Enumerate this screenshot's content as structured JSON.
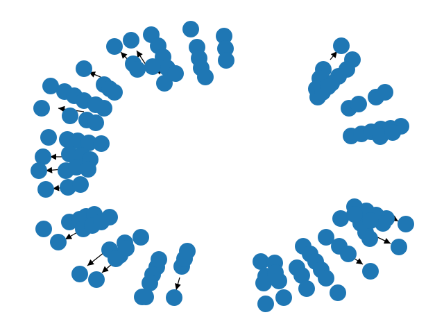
{
  "graph": {
    "node_color": "#1f77b4",
    "edge_color": "#000000",
    "directed": true,
    "node_labels_shown": false
  }
}
